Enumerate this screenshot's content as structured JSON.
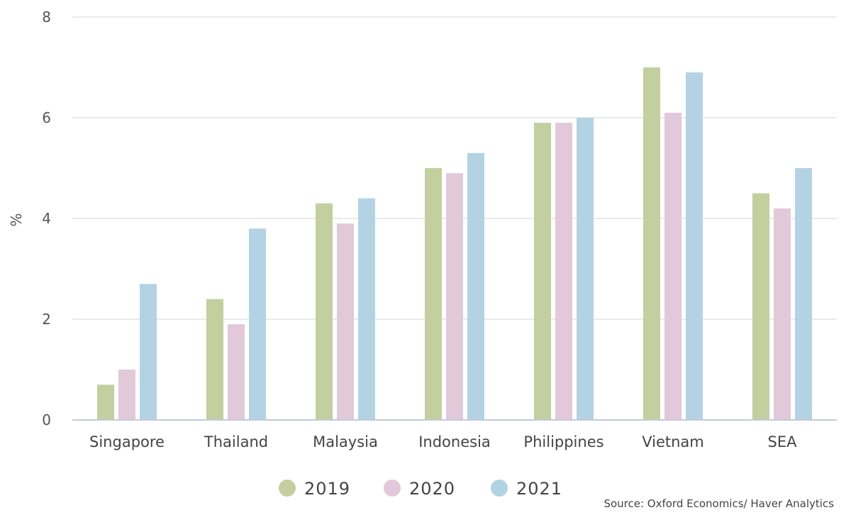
{
  "chart_data": {
    "type": "bar",
    "ylabel": "%",
    "ylim": [
      0,
      8
    ],
    "yticks": [
      0,
      2,
      4,
      6,
      8
    ],
    "grid": true,
    "legend_position": "bottom",
    "categories": [
      "Singapore",
      "Thailand",
      "Malaysia",
      "Indonesia",
      "Philippines",
      "Vietnam",
      "SEA"
    ],
    "series": [
      {
        "name": "2019",
        "color": "#c3cf9f",
        "values": [
          0.7,
          2.4,
          4.3,
          5.0,
          5.9,
          7.0,
          4.5
        ]
      },
      {
        "name": "2020",
        "color": "#e2c9d9",
        "values": [
          1.0,
          1.9,
          3.9,
          4.9,
          5.9,
          6.1,
          4.2
        ]
      },
      {
        "name": "2021",
        "color": "#b3d3e4",
        "values": [
          2.7,
          3.8,
          4.4,
          5.3,
          6.0,
          6.9,
          5.0
        ]
      }
    ],
    "source": "Source: Oxford Economics/ Haver Analytics"
  }
}
